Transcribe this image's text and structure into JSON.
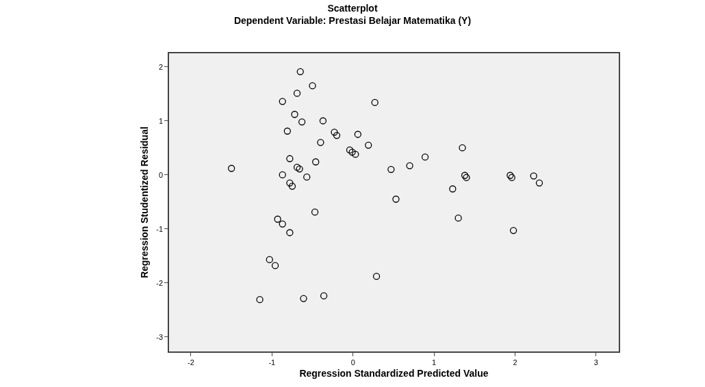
{
  "chart_data": {
    "type": "scatter",
    "title": "Scatterplot",
    "subtitle": "Dependent Variable: Prestasi Belajar Matematika (Y)",
    "xlabel": "Regression Standardized Predicted Value",
    "ylabel": "Regression Studentized Residual",
    "x": [
      -0.65,
      -0.5,
      -0.69,
      -0.87,
      0.27,
      -0.72,
      -0.63,
      -0.37,
      -0.81,
      -0.23,
      -0.2,
      0.06,
      -0.4,
      0.19,
      -0.04,
      -0.01,
      0.03,
      -0.78,
      -0.46,
      -1.5,
      -0.69,
      -0.66,
      -0.87,
      -0.57,
      -0.78,
      -0.75,
      -0.47,
      -0.93,
      -0.87,
      -0.78,
      -1.03,
      -0.96,
      0.29,
      -1.15,
      -0.61,
      -0.36,
      1.35,
      0.89,
      0.7,
      0.47,
      1.38,
      1.4,
      1.23,
      1.94,
      1.96,
      2.23,
      2.3,
      0.53,
      1.3,
      1.98
    ],
    "values": [
      1.91,
      1.65,
      1.51,
      1.36,
      1.34,
      1.12,
      0.98,
      1.0,
      0.81,
      0.79,
      0.73,
      0.75,
      0.6,
      0.55,
      0.46,
      0.42,
      0.38,
      0.3,
      0.24,
      0.12,
      0.14,
      0.11,
      0.0,
      -0.04,
      -0.15,
      -0.21,
      -0.69,
      -0.82,
      -0.91,
      -1.07,
      -1.57,
      -1.68,
      -1.88,
      -2.31,
      -2.29,
      -2.24,
      0.5,
      0.33,
      0.17,
      0.1,
      -0.01,
      -0.05,
      -0.26,
      -0.01,
      -0.05,
      -0.02,
      -0.15,
      -0.45,
      -0.8,
      -1.03
    ],
    "color": "#000000",
    "marker": "circle",
    "grid": false,
    "xlim": [
      -2.27,
      3.28
    ],
    "xticks": [
      -2,
      -1,
      0,
      1,
      2,
      3
    ],
    "ylim": [
      -3.27,
      2.25
    ],
    "yticks": [
      -3,
      -2,
      -1,
      0,
      1,
      2
    ]
  }
}
